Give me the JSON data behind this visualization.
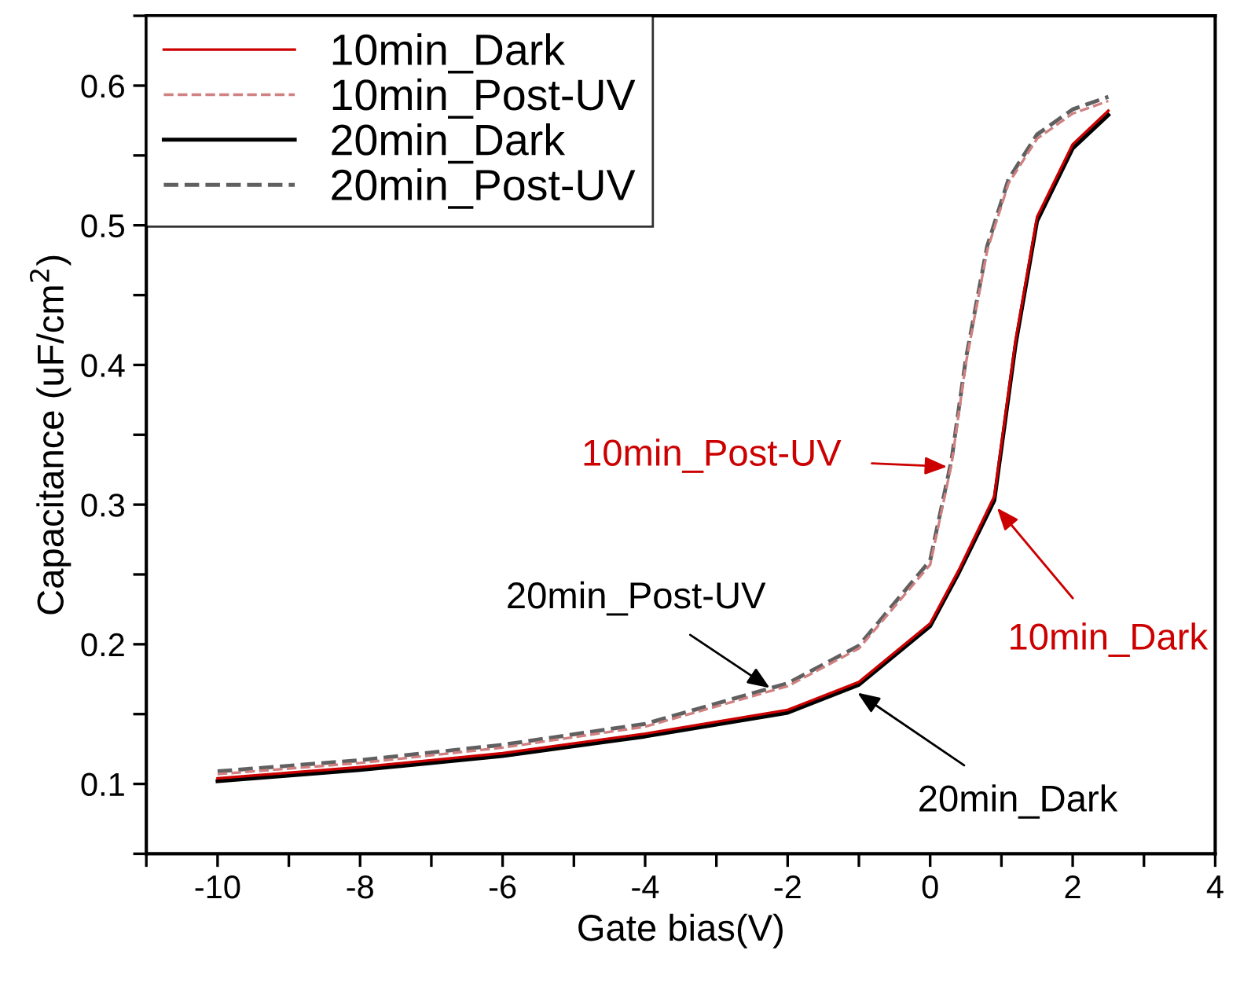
{
  "chart_data": {
    "type": "line",
    "xlabel": "Gate bias(V)",
    "ylabel": "Capacitance (uF/cm$^{2}$)",
    "xlim": [
      -11,
      4
    ],
    "ylim": [
      0.05,
      0.65
    ],
    "xticks": [
      {
        "value": -11,
        "label": null
      },
      -10,
      {
        "value": -9,
        "label": null
      },
      -8,
      {
        "value": -7,
        "label": null
      },
      -6,
      {
        "value": -5,
        "label": null
      },
      -4,
      {
        "value": -3,
        "label": null
      },
      -2,
      {
        "value": -1,
        "label": null
      },
      0,
      {
        "value": 1,
        "label": null
      },
      2,
      {
        "value": 3,
        "label": null
      },
      4
    ],
    "yticks": [
      {
        "value": 0.05,
        "label": null
      },
      0.1,
      {
        "value": 0.15,
        "label": null
      },
      0.2,
      {
        "value": 0.25,
        "label": null
      },
      0.3,
      {
        "value": 0.35,
        "label": null
      },
      0.4,
      {
        "value": 0.45,
        "label": null
      },
      0.5,
      {
        "value": 0.55,
        "label": null
      },
      0.6,
      {
        "value": 0.65,
        "label": null
      }
    ],
    "grid": false,
    "legend": "top left",
    "series": [
      {
        "name": "10min_Dark",
        "color": "#cc0000",
        "line_style": "solid",
        "x": [
          -10,
          -8,
          -6,
          -4,
          -2,
          -1,
          0,
          0.4,
          0.9,
          1.2,
          1.5,
          2.0,
          2.5
        ],
        "values": [
          0.104,
          0.112,
          0.122,
          0.136,
          0.153,
          0.173,
          0.215,
          0.253,
          0.306,
          0.418,
          0.506,
          0.558,
          0.582
        ]
      },
      {
        "name": "10min_Post-UV",
        "color": "#d08080",
        "line_style": "dashed",
        "x": [
          -10,
          -8,
          -6,
          -4,
          -2,
          -1,
          0,
          0.3,
          0.5,
          0.8,
          1.1,
          1.5,
          2.0,
          2.5
        ],
        "values": [
          0.107,
          0.115,
          0.126,
          0.141,
          0.17,
          0.197,
          0.257,
          0.329,
          0.401,
          0.482,
          0.53,
          0.562,
          0.58,
          0.589
        ]
      },
      {
        "name": "20min_Dark",
        "color": "#000000",
        "line_style": "solid",
        "x": [
          -10,
          -8,
          -6,
          -4,
          -2,
          -1,
          0,
          0.4,
          0.9,
          1.2,
          1.5,
          2.0,
          2.5
        ],
        "values": [
          0.102,
          0.11,
          0.12,
          0.134,
          0.151,
          0.171,
          0.213,
          0.251,
          0.303,
          0.415,
          0.503,
          0.555,
          0.579
        ]
      },
      {
        "name": "20min_Post-UV",
        "color": "#606060",
        "line_style": "dashed",
        "x": [
          -10,
          -8,
          -6,
          -4,
          -2,
          -1,
          0,
          0.3,
          0.5,
          0.8,
          1.1,
          1.5,
          2.0,
          2.5
        ],
        "values": [
          0.109,
          0.117,
          0.128,
          0.143,
          0.172,
          0.199,
          0.26,
          0.332,
          0.404,
          0.485,
          0.533,
          0.565,
          0.583,
          0.592
        ]
      }
    ],
    "annotations": [
      {
        "text": "10min_Dark",
        "x": 0.9,
        "y": 0.3
      },
      {
        "text": "10min_Post-UV",
        "x": 0.3,
        "y": 0.327
      },
      {
        "text": "20min_Dark",
        "x": -1.07,
        "y": 0.167
      },
      {
        "text": "20min_Post-UV",
        "x": -2.2,
        "y": 0.167
      }
    ]
  }
}
